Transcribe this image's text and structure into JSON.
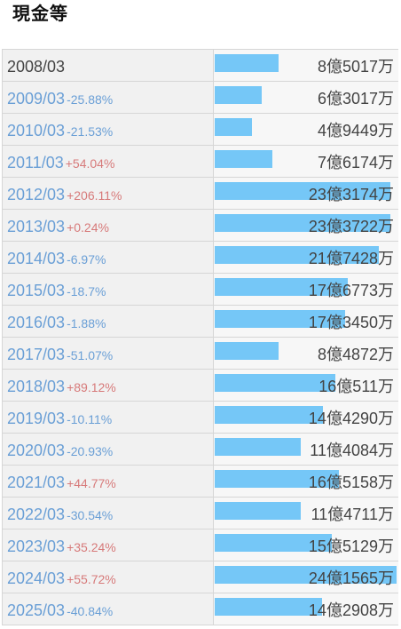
{
  "title": "現金等",
  "colors": {
    "bar": "#75c7f7",
    "negative": "#6a9fd6",
    "positive": "#d77a7a"
  },
  "rows": [
    {
      "year": "2008/03",
      "change": "",
      "amount": "8億5017万",
      "value_oku": 8.5017
    },
    {
      "year": "2009/03",
      "change": "-25.88%",
      "amount": "6億3017万",
      "value_oku": 6.3017
    },
    {
      "year": "2010/03",
      "change": "-21.53%",
      "amount": "4億9449万",
      "value_oku": 4.9449
    },
    {
      "year": "2011/03",
      "change": "+54.04%",
      "amount": "7億6174万",
      "value_oku": 7.6174
    },
    {
      "year": "2012/03",
      "change": "+206.11%",
      "amount": "23億3174万",
      "value_oku": 23.3174
    },
    {
      "year": "2013/03",
      "change": "+0.24%",
      "amount": "23億3722万",
      "value_oku": 23.3722
    },
    {
      "year": "2014/03",
      "change": "-6.97%",
      "amount": "21億7428万",
      "value_oku": 21.7428
    },
    {
      "year": "2015/03",
      "change": "-18.7%",
      "amount": "17億6773万",
      "value_oku": 17.6773
    },
    {
      "year": "2016/03",
      "change": "-1.88%",
      "amount": "17億3450万",
      "value_oku": 17.345
    },
    {
      "year": "2017/03",
      "change": "-51.07%",
      "amount": "8億4872万",
      "value_oku": 8.4872
    },
    {
      "year": "2018/03",
      "change": "+89.12%",
      "amount": "16億511万",
      "value_oku": 16.0511
    },
    {
      "year": "2019/03",
      "change": "-10.11%",
      "amount": "14億4290万",
      "value_oku": 14.429
    },
    {
      "year": "2020/03",
      "change": "-20.93%",
      "amount": "11億4084万",
      "value_oku": 11.4084
    },
    {
      "year": "2021/03",
      "change": "+44.77%",
      "amount": "16億5158万",
      "value_oku": 16.5158
    },
    {
      "year": "2022/03",
      "change": "-30.54%",
      "amount": "11億4711万",
      "value_oku": 11.4711
    },
    {
      "year": "2023/03",
      "change": "+35.24%",
      "amount": "15億5129万",
      "value_oku": 15.5129
    },
    {
      "year": "2024/03",
      "change": "+55.72%",
      "amount": "24億1565万",
      "value_oku": 24.1565
    },
    {
      "year": "2025/03",
      "change": "-40.84%",
      "amount": "14億2908万",
      "value_oku": 14.2908
    }
  ]
}
